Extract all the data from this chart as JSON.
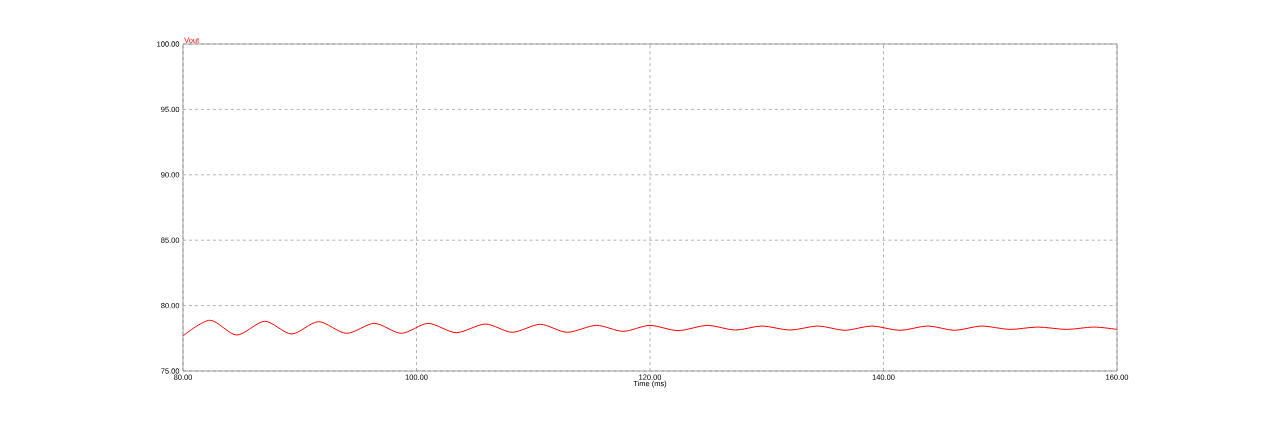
{
  "chart_data": {
    "type": "line",
    "xlabel": "Time (ms)",
    "xlim": [
      80,
      160
    ],
    "ylim": [
      75,
      100
    ],
    "xticks": [
      {
        "value": 80,
        "label": "80.00"
      },
      {
        "value": 100,
        "label": "100.00"
      },
      {
        "value": 120,
        "label": "120.00"
      },
      {
        "value": 140,
        "label": "140.00"
      },
      {
        "value": 160,
        "label": "160.00"
      }
    ],
    "yticks": [
      {
        "value": 75,
        "label": "75.00"
      },
      {
        "value": 80,
        "label": "80.00"
      },
      {
        "value": 85,
        "label": "85.00"
      },
      {
        "value": 90,
        "label": "90.00"
      },
      {
        "value": 95,
        "label": "95.00"
      },
      {
        "value": 100,
        "label": "100.00"
      }
    ],
    "grid": true,
    "line_style": "solid",
    "series": [
      {
        "name": "Vout",
        "color": "#ff0000",
        "x": [
          80,
          82.3,
          84.6,
          87.0,
          89.3,
          91.6,
          94.0,
          96.4,
          98.7,
          101.0,
          103.4,
          105.9,
          108.2,
          110.6,
          112.9,
          115.4,
          117.7,
          120.0,
          122.4,
          124.9,
          127.3,
          129.6,
          132.0,
          134.4,
          136.7,
          139.0,
          141.4,
          143.8,
          146.1,
          148.4,
          150.8,
          153.2,
          155.7,
          158.0,
          160
        ],
        "values": [
          77.68,
          78.88,
          77.75,
          78.8,
          77.83,
          78.77,
          77.88,
          78.64,
          77.88,
          78.64,
          77.93,
          78.59,
          77.96,
          78.57,
          77.96,
          78.49,
          78.03,
          78.49,
          78.08,
          78.49,
          78.13,
          78.44,
          78.13,
          78.44,
          78.11,
          78.44,
          78.11,
          78.44,
          78.11,
          78.44,
          78.18,
          78.36,
          78.18,
          78.36,
          78.18
        ]
      }
    ]
  }
}
